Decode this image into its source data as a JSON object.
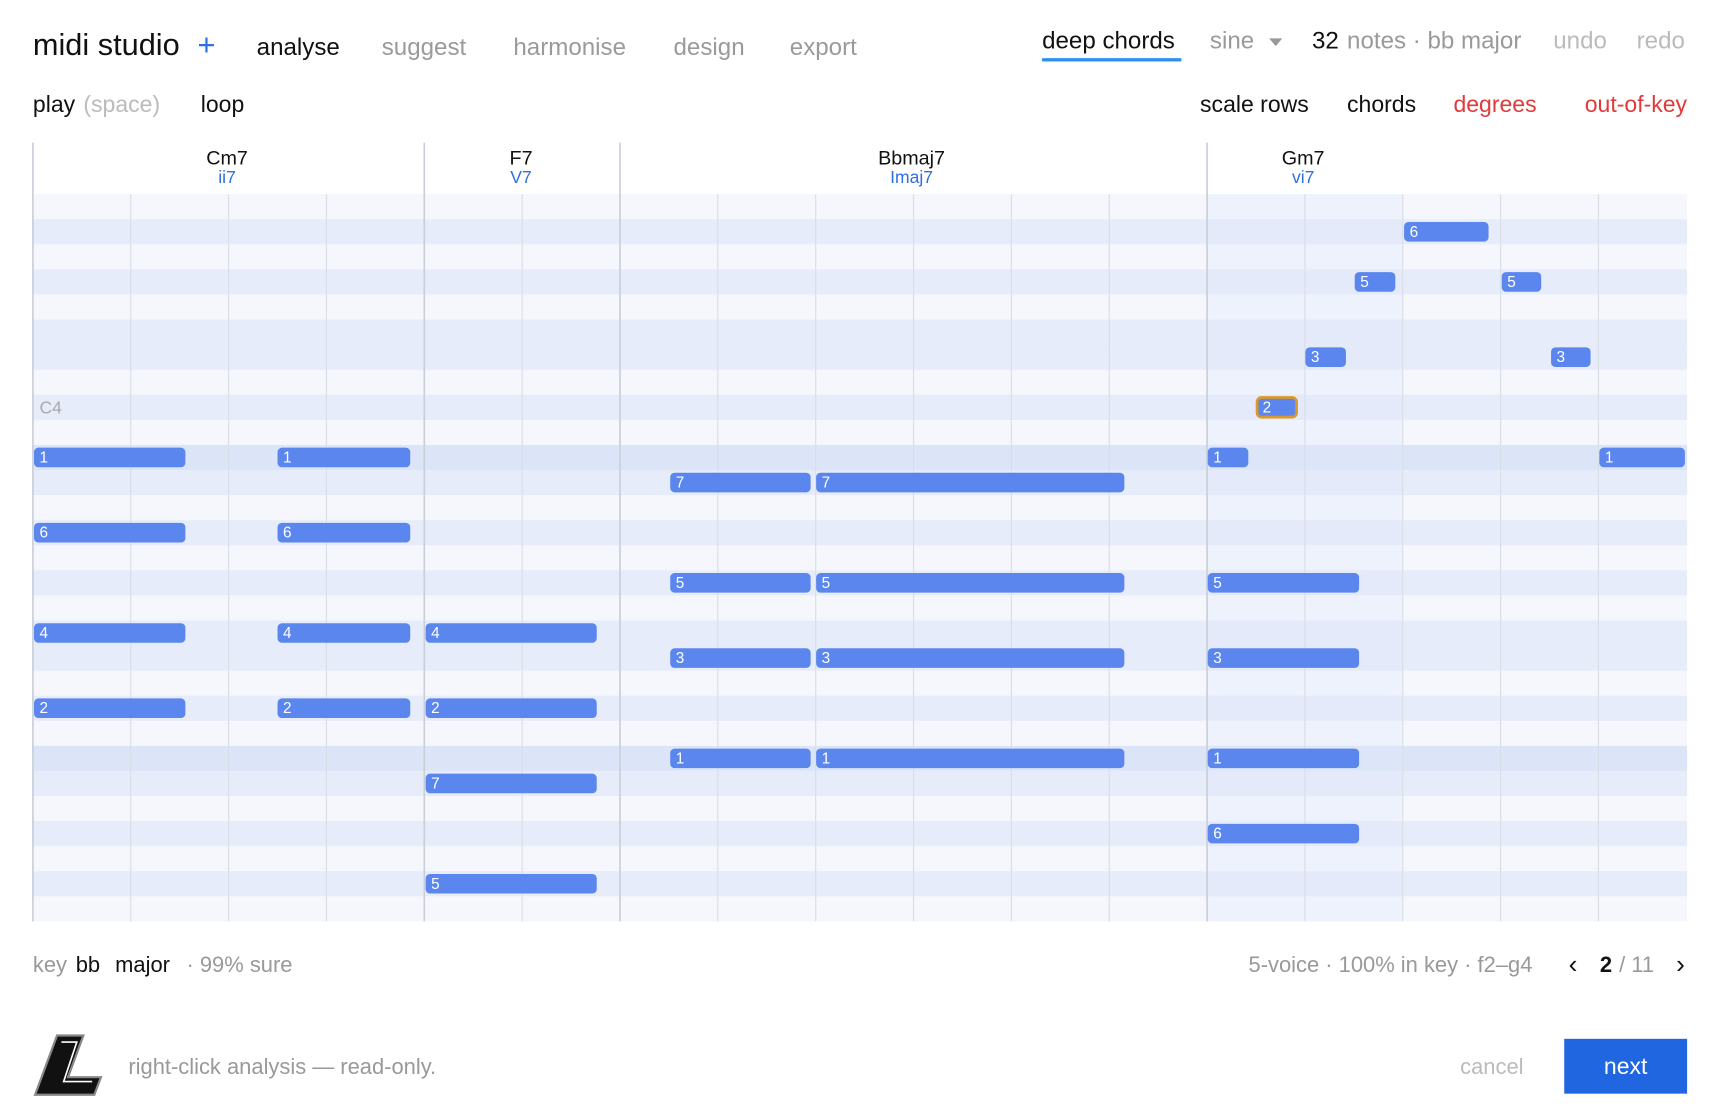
{
  "header": {
    "brand": "midi studio",
    "brand_plus": "+",
    "nav": [
      "analyse",
      "suggest",
      "harmonise",
      "design",
      "export"
    ],
    "mode": "deep chords",
    "sound": "sine",
    "note_count": "32",
    "summary": "notes · bb major",
    "undo": "undo",
    "redo": "redo"
  },
  "toolbar": {
    "play": "play",
    "play_hint": "(space)",
    "loop": "loop",
    "toggles": [
      "scale rows",
      "chords",
      "degrees",
      "out-of-key"
    ]
  },
  "roll": {
    "row_label": "C4",
    "chords": [
      {
        "name": "Cm7",
        "numeral": "ii7"
      },
      {
        "name": "F7",
        "numeral": "V7"
      },
      {
        "name": "Bbmaj7",
        "numeral": "Imaj7"
      },
      {
        "name": "Gm7",
        "numeral": "vi7"
      }
    ],
    "notes": [
      "1",
      "1",
      "6",
      "6",
      "4",
      "4",
      "2",
      "2",
      "4",
      "2",
      "7",
      "5",
      "7",
      "7",
      "5",
      "5",
      "3",
      "3",
      "1",
      "1",
      "5",
      "3",
      "1",
      "6",
      "1",
      "2",
      "3",
      "5",
      "6",
      "5",
      "3",
      "1"
    ]
  },
  "status": {
    "key_label": "key",
    "key": "bb",
    "mode": "major",
    "confidence": "· 99% sure",
    "stats": "5-voice · 100% in key · f2–g4",
    "prev": "‹",
    "page": "2",
    "total": "/ 11",
    "next": "›"
  },
  "footer": {
    "hint": "right-click analysis — read-only.",
    "cancel": "cancel",
    "next": "next"
  }
}
